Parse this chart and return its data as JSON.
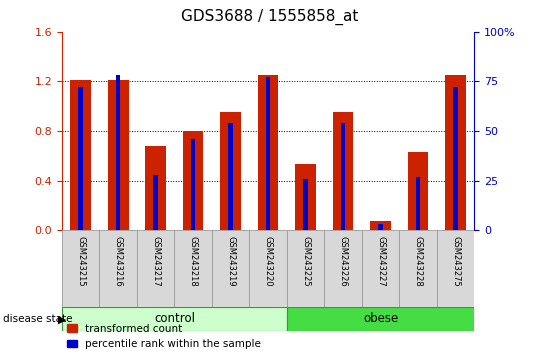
{
  "title": "GDS3688 / 1555858_at",
  "samples": [
    "GSM243215",
    "GSM243216",
    "GSM243217",
    "GSM243218",
    "GSM243219",
    "GSM243220",
    "GSM243225",
    "GSM243226",
    "GSM243227",
    "GSM243228",
    "GSM243275"
  ],
  "red_values": [
    1.21,
    1.21,
    0.68,
    0.8,
    0.95,
    1.25,
    0.53,
    0.95,
    0.07,
    0.63,
    1.25
  ],
  "blue_values": [
    72,
    78,
    28,
    46,
    54,
    77,
    26,
    54,
    3,
    27,
    72
  ],
  "red_color": "#cc2200",
  "blue_color": "#0000cc",
  "left_ylim": [
    0,
    1.6
  ],
  "right_ylim": [
    0,
    100
  ],
  "left_yticks": [
    0,
    0.4,
    0.8,
    1.2,
    1.6
  ],
  "right_yticks": [
    0,
    25,
    50,
    75,
    100
  ],
  "right_yticklabels": [
    "0",
    "25",
    "50",
    "75",
    "100%"
  ],
  "control_label": "control",
  "obese_label": "obese",
  "disease_state_label": "disease state",
  "legend_red": "transformed count",
  "legend_blue": "percentile rank within the sample",
  "control_color": "#ccffcc",
  "obese_color": "#44dd44",
  "tick_label_bg": "#d8d8d8",
  "title_fontsize": 11,
  "n_control": 6,
  "n_obese": 5
}
